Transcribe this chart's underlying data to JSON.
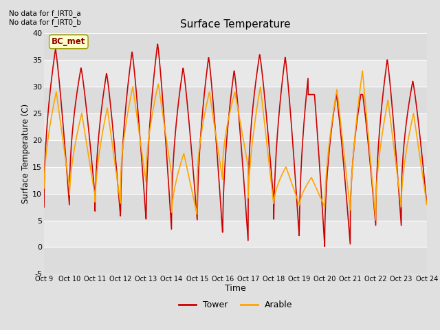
{
  "title": "Surface Temperature",
  "xlabel": "Time",
  "ylabel": "Surface Temperature (C)",
  "ylim": [
    -5,
    40
  ],
  "xlim": [
    0,
    15
  ],
  "tower_color": "#CC0000",
  "arable_color": "#FFA500",
  "bg_color": "#E0E0E0",
  "annotation_text": "No data for f_IRT0_a\nNo data for f_IRT0_b",
  "legend_box_label": "BC_met",
  "legend_box_color": "#FFFFCC",
  "legend_box_edge": "#999900",
  "xtick_labels": [
    "Oct 9",
    "Oct 10",
    "Oct 11",
    "Oct 12",
    "Oct 13",
    "Oct 14",
    "Oct 15",
    "Oct 16",
    "Oct 17",
    "Oct 18",
    "Oct 19",
    "Oct 20",
    "Oct 21",
    "Oct 22",
    "Oct 23",
    "Oct 24"
  ],
  "ytick_values": [
    -5,
    0,
    5,
    10,
    15,
    20,
    25,
    30,
    35,
    40
  ],
  "grid_color": "#FFFFFF",
  "tower_lw": 1.2,
  "arable_lw": 1.2,
  "tower_highs": [
    37,
    33.5,
    32.5,
    36.5,
    38,
    33.5,
    35.5,
    33,
    36,
    35.5,
    36,
    28.5,
    29.5,
    35,
    31
  ],
  "tower_lows": [
    7.5,
    9.5,
    5.5,
    5,
    3,
    5,
    2.5,
    1,
    8.5,
    2,
    0,
    0.5,
    4,
    4,
    8
  ],
  "arable_highs": [
    29,
    25,
    26,
    30,
    30.5,
    17.5,
    29,
    29,
    30,
    15,
    13,
    29.5,
    33,
    27.5,
    25
  ],
  "arable_lows": [
    11,
    9.5,
    8,
    12,
    13.5,
    6,
    12.5,
    15,
    8,
    8,
    7.5,
    7,
    5,
    7.5,
    8
  ],
  "tower_flat_start": 10,
  "tower_flat_end": 13,
  "tower_flat_val": 28.5,
  "figwidth": 6.4,
  "figheight": 4.8,
  "dpi": 100
}
